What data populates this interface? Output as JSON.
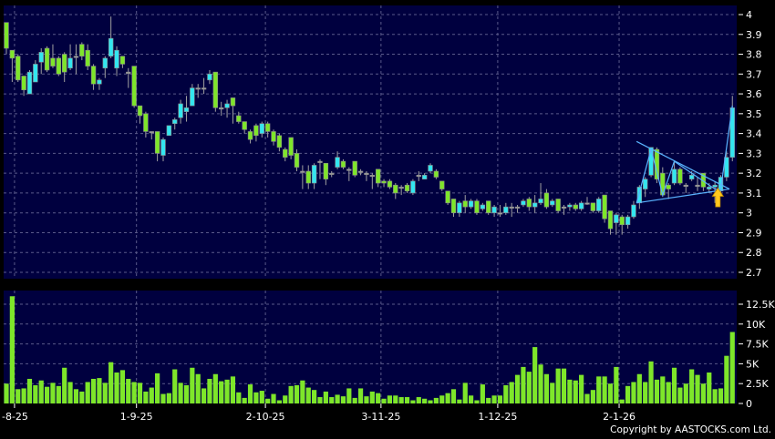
{
  "chart_data": [
    {
      "type": "candlestick",
      "ylim": [
        2.7,
        4.0
      ],
      "yticks": [
        "4",
        "3.9",
        "3.8",
        "3.7",
        "3.6",
        "3.5",
        "3.4",
        "3.3",
        "3.2",
        "3.1",
        "3",
        "2.9",
        "2.8",
        "2.7"
      ],
      "ytick_values": [
        4.0,
        3.9,
        3.8,
        3.7,
        3.6,
        3.5,
        3.4,
        3.3,
        3.2,
        3.1,
        3.0,
        2.9,
        2.8,
        2.7
      ],
      "grid": true,
      "colors": {
        "up": "#33e6f0",
        "down": "#7ee62a",
        "flat": "#a0a0a0",
        "background": "#00003f",
        "grid": "#5a5a8a",
        "annotation": "#5ab4ff",
        "arrow": "#ffc81e"
      },
      "ohlc": [
        [
          3.96,
          3.96,
          3.8,
          3.83
        ],
        [
          3.82,
          3.82,
          3.66,
          3.78
        ],
        [
          3.79,
          3.8,
          3.66,
          3.67
        ],
        [
          3.69,
          3.69,
          3.59,
          3.62
        ],
        [
          3.6,
          3.72,
          3.6,
          3.71
        ],
        [
          3.66,
          3.77,
          3.66,
          3.75
        ],
        [
          3.76,
          3.83,
          3.7,
          3.81
        ],
        [
          3.83,
          3.84,
          3.71,
          3.72
        ],
        [
          3.78,
          3.85,
          3.73,
          3.74
        ],
        [
          3.78,
          3.79,
          3.69,
          3.7
        ],
        [
          3.8,
          3.81,
          3.66,
          3.71
        ],
        [
          3.73,
          3.85,
          3.72,
          3.78
        ],
        [
          3.79,
          3.85,
          3.7,
          3.79
        ],
        [
          3.85,
          3.86,
          3.77,
          3.79
        ],
        [
          3.82,
          3.85,
          3.72,
          3.74
        ],
        [
          3.74,
          3.75,
          3.62,
          3.65
        ],
        [
          3.65,
          3.68,
          3.62,
          3.67
        ],
        [
          3.73,
          3.79,
          3.68,
          3.78
        ],
        [
          3.79,
          3.99,
          3.78,
          3.88
        ],
        [
          3.73,
          3.84,
          3.69,
          3.82
        ],
        [
          3.79,
          3.79,
          3.73,
          3.75
        ],
        [
          3.71,
          3.73,
          3.63,
          3.71
        ],
        [
          3.74,
          3.74,
          3.53,
          3.54
        ],
        [
          3.54,
          3.54,
          3.45,
          3.49
        ],
        [
          3.5,
          3.51,
          3.38,
          3.41
        ],
        [
          3.41,
          3.41,
          3.37,
          3.41
        ],
        [
          3.41,
          3.41,
          3.26,
          3.3
        ],
        [
          3.29,
          3.38,
          3.26,
          3.37
        ],
        [
          3.39,
          3.44,
          3.39,
          3.44
        ],
        [
          3.45,
          3.48,
          3.42,
          3.47
        ],
        [
          3.48,
          3.57,
          3.45,
          3.55
        ],
        [
          3.51,
          3.59,
          3.46,
          3.53
        ],
        [
          3.54,
          3.65,
          3.54,
          3.63
        ],
        [
          3.63,
          3.65,
          3.58,
          3.63
        ],
        [
          3.63,
          3.68,
          3.6,
          3.63
        ],
        [
          3.67,
          3.72,
          3.65,
          3.7
        ],
        [
          3.71,
          3.71,
          3.51,
          3.53
        ],
        [
          3.53,
          3.56,
          3.49,
          3.53
        ],
        [
          3.53,
          3.57,
          3.48,
          3.55
        ],
        [
          3.58,
          3.58,
          3.45,
          3.54
        ],
        [
          3.49,
          3.51,
          3.45,
          3.46
        ],
        [
          3.46,
          3.46,
          3.4,
          3.42
        ],
        [
          3.41,
          3.42,
          3.35,
          3.37
        ],
        [
          3.44,
          3.45,
          3.36,
          3.39
        ],
        [
          3.4,
          3.46,
          3.38,
          3.45
        ],
        [
          3.45,
          3.46,
          3.38,
          3.41
        ],
        [
          3.41,
          3.42,
          3.34,
          3.36
        ],
        [
          3.39,
          3.4,
          3.31,
          3.33
        ],
        [
          3.32,
          3.33,
          3.26,
          3.28
        ],
        [
          3.38,
          3.38,
          3.27,
          3.29
        ],
        [
          3.3,
          3.32,
          3.21,
          3.23
        ],
        [
          3.21,
          3.24,
          3.12,
          3.21
        ],
        [
          3.21,
          3.24,
          3.12,
          3.15
        ],
        [
          3.15,
          3.25,
          3.12,
          3.24
        ],
        [
          3.26,
          3.27,
          3.17,
          3.26
        ],
        [
          3.25,
          3.25,
          3.14,
          3.17
        ],
        [
          3.2,
          3.21,
          3.18,
          3.2
        ],
        [
          3.23,
          3.31,
          3.22,
          3.28
        ],
        [
          3.26,
          3.27,
          3.22,
          3.23
        ],
        [
          3.22,
          3.23,
          3.16,
          3.22
        ],
        [
          3.26,
          3.26,
          3.18,
          3.19
        ],
        [
          3.21,
          3.22,
          3.19,
          3.21
        ],
        [
          3.2,
          3.21,
          3.16,
          3.2
        ],
        [
          3.19,
          3.2,
          3.12,
          3.19
        ],
        [
          3.22,
          3.22,
          3.13,
          3.15
        ],
        [
          3.16,
          3.17,
          3.13,
          3.15
        ],
        [
          3.16,
          3.17,
          3.12,
          3.13
        ],
        [
          3.14,
          3.15,
          3.07,
          3.1
        ],
        [
          3.13,
          3.14,
          3.09,
          3.13
        ],
        [
          3.14,
          3.15,
          3.1,
          3.11
        ],
        [
          3.1,
          3.17,
          3.09,
          3.16
        ],
        [
          3.19,
          3.21,
          3.16,
          3.19
        ],
        [
          3.17,
          3.2,
          3.17,
          3.19
        ],
        [
          3.21,
          3.25,
          3.2,
          3.24
        ],
        [
          3.21,
          3.22,
          3.17,
          3.18
        ],
        [
          3.16,
          3.16,
          3.11,
          3.12
        ],
        [
          3.11,
          3.11,
          3.04,
          3.05
        ],
        [
          3.07,
          3.07,
          2.98,
          3.0
        ],
        [
          3.0,
          3.06,
          2.98,
          3.05
        ],
        [
          3.06,
          3.09,
          3.0,
          3.03
        ],
        [
          3.03,
          3.07,
          3.02,
          3.06
        ],
        [
          3.06,
          3.07,
          2.99,
          3.0
        ],
        [
          3.02,
          3.05,
          3.01,
          3.04
        ],
        [
          3.06,
          3.06,
          2.99,
          3.0
        ],
        [
          3.0,
          3.04,
          2.98,
          3.03
        ],
        [
          3.0,
          3.04,
          2.98,
          3.0
        ],
        [
          3.0,
          3.05,
          2.99,
          3.03
        ],
        [
          3.03,
          3.05,
          2.98,
          3.03
        ],
        [
          3.03,
          3.04,
          3.0,
          3.03
        ],
        [
          3.04,
          3.07,
          3.03,
          3.06
        ],
        [
          3.07,
          3.08,
          3.01,
          3.03
        ],
        [
          3.03,
          3.09,
          3.0,
          3.05
        ],
        [
          3.05,
          3.15,
          3.04,
          3.07
        ],
        [
          3.1,
          3.12,
          3.02,
          3.03
        ],
        [
          3.04,
          3.07,
          3.03,
          3.06
        ],
        [
          3.07,
          3.07,
          3.0,
          3.01
        ],
        [
          3.03,
          3.04,
          2.99,
          3.03
        ],
        [
          3.03,
          3.05,
          3.01,
          3.04
        ],
        [
          3.04,
          3.05,
          3.01,
          3.02
        ],
        [
          3.02,
          3.06,
          3.01,
          3.05
        ],
        [
          3.05,
          3.08,
          3.04,
          3.05
        ],
        [
          3.05,
          3.05,
          3.0,
          3.01
        ],
        [
          3.01,
          3.08,
          3.0,
          3.07
        ],
        [
          3.09,
          3.09,
          2.95,
          2.97
        ],
        [
          3.01,
          3.01,
          2.89,
          2.92
        ],
        [
          2.95,
          3.0,
          2.89,
          2.99
        ],
        [
          2.98,
          2.99,
          2.89,
          2.94
        ],
        [
          2.94,
          2.99,
          2.92,
          2.98
        ],
        [
          2.98,
          3.06,
          2.97,
          3.04
        ],
        [
          3.05,
          3.14,
          3.02,
          3.13
        ],
        [
          3.12,
          3.18,
          3.08,
          3.17
        ],
        [
          3.19,
          3.33,
          3.18,
          3.33
        ],
        [
          3.32,
          3.33,
          3.15,
          3.17
        ],
        [
          3.2,
          3.23,
          3.08,
          3.09
        ],
        [
          3.14,
          3.15,
          3.07,
          3.12
        ],
        [
          3.15,
          3.26,
          3.14,
          3.22
        ],
        [
          3.22,
          3.23,
          3.14,
          3.15
        ],
        [
          3.14,
          3.15,
          3.1,
          3.14
        ],
        [
          3.17,
          3.21,
          3.16,
          3.19
        ],
        [
          3.14,
          3.18,
          3.11,
          3.14
        ],
        [
          3.2,
          3.2,
          3.11,
          3.13
        ],
        [
          3.12,
          3.15,
          3.1,
          3.13
        ],
        [
          3.13,
          3.16,
          3.05,
          3.14
        ],
        [
          3.11,
          3.19,
          3.1,
          3.18
        ],
        [
          3.18,
          3.31,
          3.16,
          3.28
        ],
        [
          3.28,
          3.59,
          3.26,
          3.53
        ]
      ],
      "annotations": {
        "lines": [
          [
            [
              108.5,
              3.36
            ],
            [
              124.5,
              3.12
            ]
          ],
          [
            [
              108.5,
              3.05
            ],
            [
              124.5,
              3.12
            ]
          ],
          [
            [
              108.5,
              3.05
            ],
            [
              111,
              3.32
            ],
            [
              113,
              3.09
            ],
            [
              115,
              3.26
            ],
            [
              122,
              3.12
            ],
            [
              123,
              3.12
            ],
            [
              125,
              3.54
            ]
          ]
        ],
        "arrow": {
          "index": 122.5,
          "price_tip": 3.125,
          "price_tail": 3.03,
          "direction": "up"
        }
      }
    },
    {
      "type": "bar",
      "unit": "K",
      "ylim": [
        0,
        14.2
      ],
      "yticks": [
        "12.5K",
        "10K",
        "7.5K",
        "5K",
        "2.5K",
        "0"
      ],
      "ytick_values": [
        12.5,
        10,
        7.5,
        5,
        2.5,
        0
      ],
      "grid": true,
      "color": "#7ee62a",
      "values": [
        2.5,
        13.5,
        1.8,
        1.9,
        3.1,
        2.3,
        2.9,
        2.1,
        2.6,
        2.2,
        4.5,
        2.7,
        1.8,
        1.5,
        2.7,
        3.1,
        3.2,
        2.6,
        5.2,
        3.9,
        4.2,
        3.1,
        2.7,
        2.6,
        1.5,
        2.0,
        3.8,
        1.2,
        1.3,
        4.3,
        2.6,
        2.3,
        4.5,
        3.7,
        1.9,
        3.1,
        3.7,
        2.8,
        3.0,
        3.4,
        1.4,
        0.7,
        2.4,
        1.4,
        1.6,
        0.6,
        1.2,
        0.4,
        1.0,
        2.2,
        2.3,
        2.9,
        2.0,
        1.7,
        0.8,
        1.5,
        0.8,
        1.1,
        0.9,
        1.9,
        0.7,
        1.9,
        0.9,
        1.5,
        1.3,
        0.6,
        1.0,
        1.0,
        0.8,
        0.8,
        0.4,
        0.8,
        0.6,
        0.4,
        0.7,
        1.0,
        1.3,
        1.8,
        0.5,
        2.6,
        1.0,
        0.4,
        2.4,
        0.7,
        1.0,
        1.0,
        2.3,
        2.7,
        3.6,
        4.6,
        4.0,
        7.1,
        4.9,
        3.7,
        2.6,
        4.4,
        4.4,
        3.0,
        2.9,
        3.6,
        1.2,
        1.7,
        3.4,
        3.4,
        2.5,
        4.6,
        0.5,
        2.2,
        2.7,
        3.7,
        2.7,
        5.3,
        3.0,
        3.4,
        2.7,
        4.5,
        2.0,
        2.5,
        4.3,
        3.6,
        2.5,
        3.9,
        1.8,
        1.9,
        6.0,
        9.0
      ]
    }
  ],
  "xaxis": {
    "labels": [
      "-8-25",
      "1-9-25",
      "2-10-25",
      "3-11-25",
      "1-12-25",
      "2-1-26"
    ],
    "label_indices": [
      1.4,
      22.4,
      44.6,
      64.5,
      84.6,
      105.5
    ]
  },
  "copyright": "Copyright by AASTOCKS.com Ltd."
}
